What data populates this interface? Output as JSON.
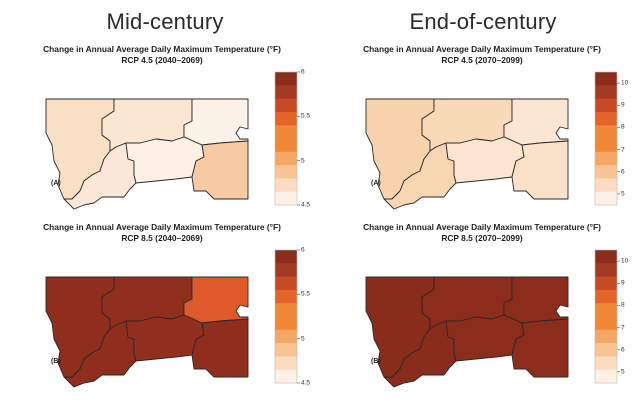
{
  "headings": {
    "mid": "Mid-century",
    "end": "End-of-century"
  },
  "colors": {
    "stroke": "#2a2a2a",
    "scale_warm": [
      "#fdf0e4",
      "#fbdcc0",
      "#f8c494",
      "#f5a865",
      "#f08838",
      "#e5642a",
      "#c64a24",
      "#a43a22",
      "#8c2d1c"
    ]
  },
  "panels": [
    {
      "id": "mid-rcp45",
      "title": "Change in Annual Average Daily Maximum Temperature (°F)",
      "subtitle": "RCP 4.5 (2040–2069)",
      "label": "(A)",
      "legend": {
        "ticks": [
          "6",
          "5.5",
          "5",
          "4.5"
        ],
        "range": [
          4.5,
          6
        ]
      },
      "region_colors": {
        "west": "#f9dfc4",
        "central": "#fbe6d2",
        "northeast": "#fdf2e8",
        "southwest": "#fbe8d8",
        "south": "#fdf0e4",
        "southeast": "#f6cba3"
      }
    },
    {
      "id": "end-rcp45",
      "title": "Change in Annual Average Daily Maximum Temperature (°F)",
      "subtitle": "RCP 4.5 (2070–2099)",
      "label": "(A)",
      "legend": {
        "ticks": [
          "10",
          "9",
          "8",
          "7",
          "6",
          "5"
        ],
        "range": [
          4.5,
          10.5
        ]
      },
      "region_colors": {
        "west": "#f8d3ac",
        "central": "#f9dab8",
        "northeast": "#fbe6d3",
        "southwest": "#f8d6b2",
        "south": "#fbe5d0",
        "southeast": "#fae2ca"
      }
    },
    {
      "id": "mid-rcp85",
      "title": "Change in Annual Average Daily Maximum Temperature (°F)",
      "subtitle": "RCP 8.5 (2040–2069)",
      "label": "(B)",
      "legend": {
        "ticks": [
          "6",
          "5.5",
          "5",
          "4.5"
        ],
        "range": [
          4.5,
          6
        ]
      },
      "region_colors": {
        "west": "#8f2e1d",
        "central": "#902f1d",
        "northeast": "#de5a2a",
        "southwest": "#8f2e1d",
        "south": "#922f1e",
        "southeast": "#8f2e1d"
      }
    },
    {
      "id": "end-rcp85",
      "title": "Change in Annual Average Daily Maximum Temperature (°F)",
      "subtitle": "RCP 8.5 (2070–2099)",
      "label": "(B)",
      "legend": {
        "ticks": [
          "10",
          "9",
          "8",
          "7",
          "6",
          "5"
        ],
        "range": [
          4.5,
          10.5
        ]
      },
      "region_colors": {
        "west": "#8a2c1c",
        "central": "#8b2c1c",
        "northeast": "#8c2d1c",
        "southwest": "#8a2c1c",
        "south": "#8c2d1c",
        "southeast": "#8b2c1c"
      }
    }
  ]
}
